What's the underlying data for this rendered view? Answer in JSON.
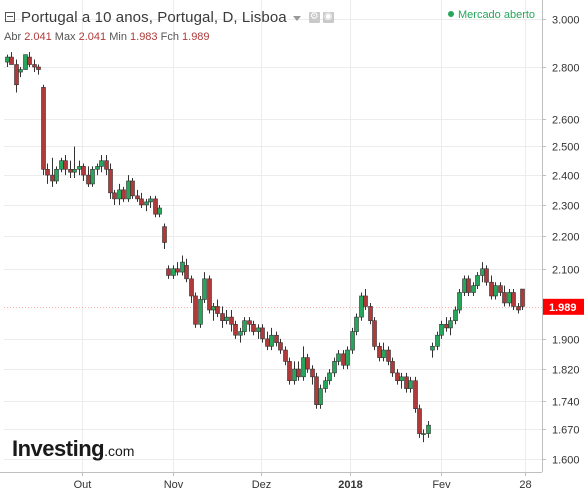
{
  "header": {
    "title": "Portugal a 10 anos, Portugal, D, Lisboa",
    "ohlc": [
      {
        "label": "Abr",
        "value": "2.041"
      },
      {
        "label": "Max",
        "value": "2.041"
      },
      {
        "label": "Min",
        "value": "1.983"
      },
      {
        "label": "Fch",
        "value": "1.989"
      }
    ],
    "settings_icon": "gear-icon",
    "snapshot_icon": "camera-icon",
    "collapse_icon": "minus-square-icon"
  },
  "market_status": "Mercado aberto",
  "logo": {
    "brand": "Investing",
    "domain": ".com"
  },
  "colors": {
    "up": "#26a65b",
    "down": "#b03a3a",
    "last_price_tag": "#ff0000",
    "status": "#26a65b"
  },
  "chart_data": {
    "type": "candlestick",
    "title": "Portugal a 10 anos, Portugal, D, Lisboa",
    "y_scale": "log",
    "ylim": [
      1.585,
      3.02
    ],
    "y_ticks": [
      "3.000",
      "2.800",
      "2.600",
      "2.500",
      "2.400",
      "2.300",
      "2.200",
      "2.100",
      "1.900",
      "1.820",
      "1.740",
      "1.670",
      "1.600"
    ],
    "x_ticks": [
      "Out",
      "Nov",
      "Dez",
      "2018",
      "Fev",
      "28"
    ],
    "last_price": "1.989",
    "grid": true,
    "candles": [
      [
        2.82,
        2.85,
        2.8,
        2.84
      ],
      [
        2.84,
        2.86,
        2.82,
        2.81
      ],
      [
        2.81,
        2.83,
        2.7,
        2.73
      ],
      [
        2.78,
        2.8,
        2.76,
        2.79
      ],
      [
        2.79,
        2.85,
        2.79,
        2.85
      ],
      [
        2.84,
        2.86,
        2.8,
        2.81
      ],
      [
        2.81,
        2.83,
        2.78,
        2.8
      ],
      [
        2.8,
        2.81,
        2.77,
        2.79
      ],
      [
        2.72,
        2.73,
        2.4,
        2.42
      ],
      [
        2.42,
        2.44,
        2.37,
        2.4
      ],
      [
        2.4,
        2.46,
        2.36,
        2.38
      ],
      [
        2.38,
        2.43,
        2.37,
        2.42
      ],
      [
        2.42,
        2.46,
        2.41,
        2.45
      ],
      [
        2.45,
        2.47,
        2.4,
        2.42
      ],
      [
        2.42,
        2.45,
        2.39,
        2.41
      ],
      [
        2.41,
        2.5,
        2.39,
        2.42
      ],
      [
        2.42,
        2.45,
        2.4,
        2.43
      ],
      [
        2.43,
        2.44,
        2.38,
        2.4
      ],
      [
        2.4,
        2.43,
        2.36,
        2.37
      ],
      [
        2.37,
        2.43,
        2.36,
        2.42
      ],
      [
        2.42,
        2.44,
        2.4,
        2.43
      ],
      [
        2.43,
        2.47,
        2.41,
        2.45
      ],
      [
        2.45,
        2.47,
        2.4,
        2.42
      ],
      [
        2.42,
        2.44,
        2.32,
        2.34
      ],
      [
        2.34,
        2.35,
        2.3,
        2.32
      ],
      [
        2.32,
        2.37,
        2.3,
        2.35
      ],
      [
        2.35,
        2.36,
        2.31,
        2.32
      ],
      [
        2.32,
        2.4,
        2.31,
        2.38
      ],
      [
        2.38,
        2.39,
        2.32,
        2.33
      ],
      [
        2.33,
        2.35,
        2.31,
        2.32
      ],
      [
        2.32,
        2.34,
        2.29,
        2.3
      ],
      [
        2.3,
        2.32,
        2.28,
        2.31
      ],
      [
        2.31,
        2.33,
        2.29,
        2.32
      ],
      [
        2.32,
        2.33,
        2.26,
        2.27
      ],
      [
        2.27,
        2.3,
        2.26,
        2.29
      ],
      [
        2.23,
        2.24,
        2.16,
        2.18
      ],
      [
        2.1,
        2.11,
        2.07,
        2.08
      ],
      [
        2.08,
        2.11,
        2.07,
        2.1
      ],
      [
        2.1,
        2.12,
        2.08,
        2.09
      ],
      [
        2.09,
        2.14,
        2.08,
        2.12
      ],
      [
        2.11,
        2.13,
        2.06,
        2.07
      ],
      [
        2.07,
        2.08,
        2.0,
        2.02
      ],
      [
        2.02,
        2.03,
        1.93,
        1.94
      ],
      [
        1.94,
        2.02,
        1.93,
        2.01
      ],
      [
        2.01,
        2.09,
        2.0,
        2.07
      ],
      [
        2.07,
        2.08,
        1.97,
        1.98
      ],
      [
        1.98,
        2.0,
        1.95,
        1.99
      ],
      [
        1.99,
        2.01,
        1.96,
        1.97
      ],
      [
        1.97,
        1.99,
        1.93,
        1.95
      ],
      [
        1.95,
        1.98,
        1.94,
        1.96
      ],
      [
        1.96,
        1.98,
        1.92,
        1.94
      ],
      [
        1.94,
        1.95,
        1.9,
        1.91
      ],
      [
        1.91,
        1.93,
        1.89,
        1.92
      ],
      [
        1.92,
        1.96,
        1.91,
        1.95
      ],
      [
        1.95,
        1.96,
        1.92,
        1.94
      ],
      [
        1.94,
        1.95,
        1.91,
        1.92
      ],
      [
        1.92,
        1.94,
        1.9,
        1.93
      ],
      [
        1.93,
        1.94,
        1.89,
        1.9
      ],
      [
        1.9,
        1.92,
        1.87,
        1.88
      ],
      [
        1.88,
        1.93,
        1.87,
        1.91
      ],
      [
        1.91,
        1.92,
        1.88,
        1.89
      ],
      [
        1.89,
        1.9,
        1.86,
        1.87
      ],
      [
        1.87,
        1.88,
        1.83,
        1.84
      ],
      [
        1.84,
        1.85,
        1.78,
        1.79
      ],
      [
        1.79,
        1.84,
        1.78,
        1.82
      ],
      [
        1.82,
        1.84,
        1.79,
        1.8
      ],
      [
        1.8,
        1.88,
        1.79,
        1.85
      ],
      [
        1.85,
        1.86,
        1.81,
        1.82
      ],
      [
        1.82,
        1.83,
        1.78,
        1.8
      ],
      [
        1.8,
        1.81,
        1.72,
        1.73
      ],
      [
        1.73,
        1.78,
        1.72,
        1.77
      ],
      [
        1.77,
        1.8,
        1.76,
        1.79
      ],
      [
        1.79,
        1.82,
        1.78,
        1.81
      ],
      [
        1.81,
        1.85,
        1.8,
        1.84
      ],
      [
        1.84,
        1.87,
        1.83,
        1.86
      ],
      [
        1.86,
        1.87,
        1.82,
        1.83
      ],
      [
        1.83,
        1.88,
        1.82,
        1.87
      ],
      [
        1.87,
        1.93,
        1.86,
        1.92
      ],
      [
        1.92,
        1.97,
        1.91,
        1.96
      ],
      [
        1.96,
        2.03,
        1.95,
        2.02
      ],
      [
        2.02,
        2.04,
        1.98,
        1.99
      ],
      [
        1.99,
        2.0,
        1.94,
        1.95
      ],
      [
        1.95,
        1.96,
        1.87,
        1.88
      ],
      [
        1.88,
        1.89,
        1.84,
        1.85
      ],
      [
        1.85,
        1.89,
        1.84,
        1.87
      ],
      [
        1.87,
        1.88,
        1.83,
        1.84
      ],
      [
        1.84,
        1.85,
        1.8,
        1.81
      ],
      [
        1.81,
        1.82,
        1.78,
        1.79
      ],
      [
        1.79,
        1.81,
        1.77,
        1.8
      ],
      [
        1.8,
        1.81,
        1.76,
        1.77
      ],
      [
        1.77,
        1.8,
        1.76,
        1.79
      ],
      [
        1.79,
        1.8,
        1.71,
        1.72
      ],
      [
        1.72,
        1.73,
        1.65,
        1.66
      ],
      [
        1.66,
        1.67,
        1.64,
        1.66
      ],
      [
        1.66,
        1.69,
        1.65,
        1.68
      ],
      [
        1.87,
        1.89,
        1.85,
        1.88
      ],
      [
        1.88,
        1.92,
        1.87,
        1.91
      ],
      [
        1.91,
        1.95,
        1.9,
        1.94
      ],
      [
        1.94,
        1.96,
        1.92,
        1.93
      ],
      [
        1.93,
        1.96,
        1.91,
        1.95
      ],
      [
        1.95,
        1.99,
        1.94,
        1.98
      ],
      [
        1.98,
        2.04,
        1.97,
        2.03
      ],
      [
        2.03,
        2.08,
        2.02,
        2.07
      ],
      [
        2.07,
        2.08,
        2.02,
        2.03
      ],
      [
        2.03,
        2.06,
        2.02,
        2.05
      ],
      [
        2.05,
        2.09,
        2.04,
        2.08
      ],
      [
        2.08,
        2.12,
        2.06,
        2.1
      ],
      [
        2.1,
        2.11,
        2.05,
        2.06
      ],
      [
        2.06,
        2.08,
        2.01,
        2.02
      ],
      [
        2.02,
        2.06,
        2.01,
        2.05
      ],
      [
        2.05,
        2.06,
        2.02,
        2.03
      ],
      [
        2.03,
        2.05,
        1.99,
        2.0
      ],
      [
        2.0,
        2.04,
        1.99,
        2.03
      ],
      [
        2.03,
        2.04,
        1.98,
        1.99
      ],
      [
        1.99,
        2.0,
        1.97,
        1.98
      ],
      [
        2.04,
        2.04,
        1.98,
        1.99
      ]
    ]
  }
}
